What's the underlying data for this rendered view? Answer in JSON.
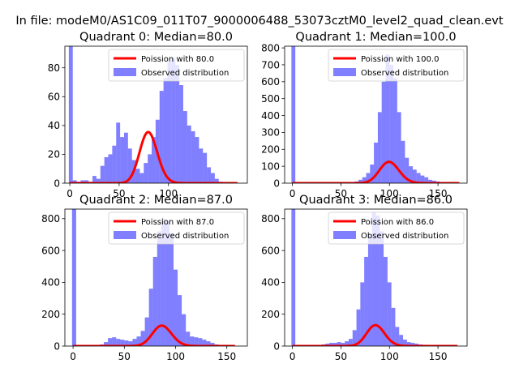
{
  "figure": {
    "suptitle": "In file: modeM0/AS1C09_011T07_9000006488_53073cztM0_level2_quad_clean.evt"
  },
  "colors": {
    "hist": "#0000ff",
    "hist_alpha": 0.5,
    "poisson": "#ff0000",
    "axis": "#000000",
    "background": "#ffffff"
  },
  "chart_data": [
    {
      "type": "bar",
      "title": "Quadrant 0: Median=80.0",
      "median": 80.0,
      "xlim": [
        -5,
        180
      ],
      "ylim": [
        0,
        95
      ],
      "xticks": [
        0,
        50,
        100
      ],
      "yticks": [
        0,
        20,
        40,
        60,
        80
      ],
      "bin_width": 4,
      "legend": {
        "position": "top-right",
        "entries": [
          "Poission with 80.0",
          "Observed distribution"
        ]
      },
      "series": [
        {
          "name": "Observed distribution",
          "kind": "histogram",
          "bins": [
            [
              -1,
              95
            ],
            [
              3,
              2
            ],
            [
              7,
              1
            ],
            [
              11,
              2
            ],
            [
              15,
              2
            ],
            [
              19,
              1
            ],
            [
              23,
              5
            ],
            [
              27,
              3
            ],
            [
              31,
              12
            ],
            [
              35,
              18
            ],
            [
              39,
              20
            ],
            [
              43,
              26
            ],
            [
              47,
              42
            ],
            [
              51,
              32
            ],
            [
              55,
              35
            ],
            [
              59,
              24
            ],
            [
              63,
              16
            ],
            [
              67,
              10
            ],
            [
              71,
              7
            ],
            [
              75,
              14
            ],
            [
              79,
              20
            ],
            [
              83,
              32
            ],
            [
              87,
              44
            ],
            [
              91,
              64
            ],
            [
              95,
              73
            ],
            [
              99,
              84
            ],
            [
              103,
              87
            ],
            [
              107,
              82
            ],
            [
              111,
              68
            ],
            [
              115,
              50
            ],
            [
              119,
              40
            ],
            [
              123,
              36
            ],
            [
              127,
              32
            ],
            [
              131,
              24
            ],
            [
              135,
              21
            ],
            [
              139,
              11
            ],
            [
              143,
              7
            ],
            [
              147,
              3
            ],
            [
              151,
              1
            ]
          ]
        },
        {
          "name": "Poission with 80.0",
          "kind": "poisson",
          "lambda": 80.0,
          "scale": 795,
          "x_range": [
            0,
            170
          ]
        }
      ]
    },
    {
      "type": "bar",
      "title": "Quadrant 1: Median=100.0",
      "median": 100.0,
      "xlim": [
        -8,
        180
      ],
      "ylim": [
        0,
        810
      ],
      "xticks": [
        0,
        50,
        100,
        150
      ],
      "yticks": [
        0,
        100,
        200,
        300,
        400,
        500,
        600,
        700,
        800
      ],
      "bin_width": 4,
      "legend": {
        "position": "top-right",
        "entries": [
          "Poission with 100.0",
          "Observed distribution"
        ]
      },
      "series": [
        {
          "name": "Observed distribution",
          "kind": "histogram",
          "bins": [
            [
              -1,
              810
            ],
            [
              60,
              5
            ],
            [
              64,
              10
            ],
            [
              68,
              20
            ],
            [
              72,
              35
            ],
            [
              76,
              60
            ],
            [
              80,
              110
            ],
            [
              84,
              240
            ],
            [
              88,
              420
            ],
            [
              92,
              600
            ],
            [
              96,
              760
            ],
            [
              100,
              700
            ],
            [
              104,
              620
            ],
            [
              108,
              420
            ],
            [
              112,
              250
            ],
            [
              116,
              150
            ],
            [
              120,
              100
            ],
            [
              124,
              80
            ],
            [
              128,
              60
            ],
            [
              132,
              45
            ],
            [
              136,
              35
            ],
            [
              140,
              20
            ],
            [
              144,
              15
            ],
            [
              148,
              10
            ],
            [
              152,
              5
            ],
            [
              156,
              5
            ],
            [
              160,
              5
            ]
          ]
        },
        {
          "name": "Poission with 100.0",
          "kind": "poisson",
          "lambda": 100.0,
          "scale": 3160,
          "x_range": [
            0,
            172
          ]
        }
      ]
    },
    {
      "type": "bar",
      "title": "Quadrant 2: Median=87.0",
      "median": 87.0,
      "xlim": [
        -8,
        170
      ],
      "ylim": [
        0,
        860
      ],
      "xticks": [
        0,
        50,
        100,
        150
      ],
      "yticks": [
        0,
        200,
        400,
        600,
        800
      ],
      "bin_width": 4,
      "legend": {
        "position": "top-right",
        "entries": [
          "Poission with 87.0",
          "Observed distribution"
        ]
      },
      "series": [
        {
          "name": "Observed distribution",
          "kind": "histogram",
          "bins": [
            [
              -1,
              860
            ],
            [
              26,
              10
            ],
            [
              30,
              25
            ],
            [
              34,
              50
            ],
            [
              38,
              55
            ],
            [
              42,
              45
            ],
            [
              46,
              40
            ],
            [
              50,
              35
            ],
            [
              54,
              30
            ],
            [
              58,
              45
            ],
            [
              62,
              60
            ],
            [
              66,
              95
            ],
            [
              70,
              180
            ],
            [
              74,
              360
            ],
            [
              78,
              560
            ],
            [
              82,
              720
            ],
            [
              86,
              800
            ],
            [
              90,
              780
            ],
            [
              94,
              710
            ],
            [
              98,
              480
            ],
            [
              102,
              320
            ],
            [
              106,
              200
            ],
            [
              110,
              90
            ],
            [
              114,
              60
            ],
            [
              118,
              55
            ],
            [
              122,
              50
            ],
            [
              126,
              40
            ],
            [
              130,
              30
            ],
            [
              134,
              20
            ],
            [
              138,
              10
            ],
            [
              142,
              6
            ],
            [
              146,
              5
            ],
            [
              150,
              5
            ]
          ]
        },
        {
          "name": "Poission with 87.0",
          "kind": "poisson",
          "lambda": 87.0,
          "scale": 3000,
          "x_range": [
            0,
            158
          ]
        }
      ]
    },
    {
      "type": "bar",
      "title": "Quadrant 3: Median=86.0",
      "median": 86.0,
      "xlim": [
        -8,
        180
      ],
      "ylim": [
        0,
        860
      ],
      "xticks": [
        0,
        50,
        100,
        150
      ],
      "yticks": [
        0,
        200,
        400,
        600,
        800
      ],
      "bin_width": 4,
      "legend": {
        "position": "top-right",
        "entries": [
          "Poission with 86.0",
          "Observed distribution"
        ]
      },
      "series": [
        {
          "name": "Observed distribution",
          "kind": "histogram",
          "bins": [
            [
              -1,
              860
            ],
            [
              30,
              10
            ],
            [
              34,
              15
            ],
            [
              38,
              20
            ],
            [
              42,
              20
            ],
            [
              46,
              25
            ],
            [
              50,
              20
            ],
            [
              54,
              30
            ],
            [
              58,
              45
            ],
            [
              62,
              100
            ],
            [
              66,
              230
            ],
            [
              70,
              400
            ],
            [
              74,
              560
            ],
            [
              78,
              700
            ],
            [
              82,
              840
            ],
            [
              86,
              820
            ],
            [
              90,
              720
            ],
            [
              94,
              560
            ],
            [
              98,
              400
            ],
            [
              102,
              240
            ],
            [
              106,
              120
            ],
            [
              110,
              70
            ],
            [
              114,
              40
            ],
            [
              118,
              25
            ],
            [
              122,
              20
            ],
            [
              126,
              15
            ],
            [
              130,
              10
            ],
            [
              134,
              8
            ],
            [
              138,
              6
            ],
            [
              142,
              5
            ]
          ]
        },
        {
          "name": "Poission with 86.0",
          "kind": "poisson",
          "lambda": 86.0,
          "scale": 3050,
          "x_range": [
            0,
            170
          ]
        }
      ]
    }
  ]
}
